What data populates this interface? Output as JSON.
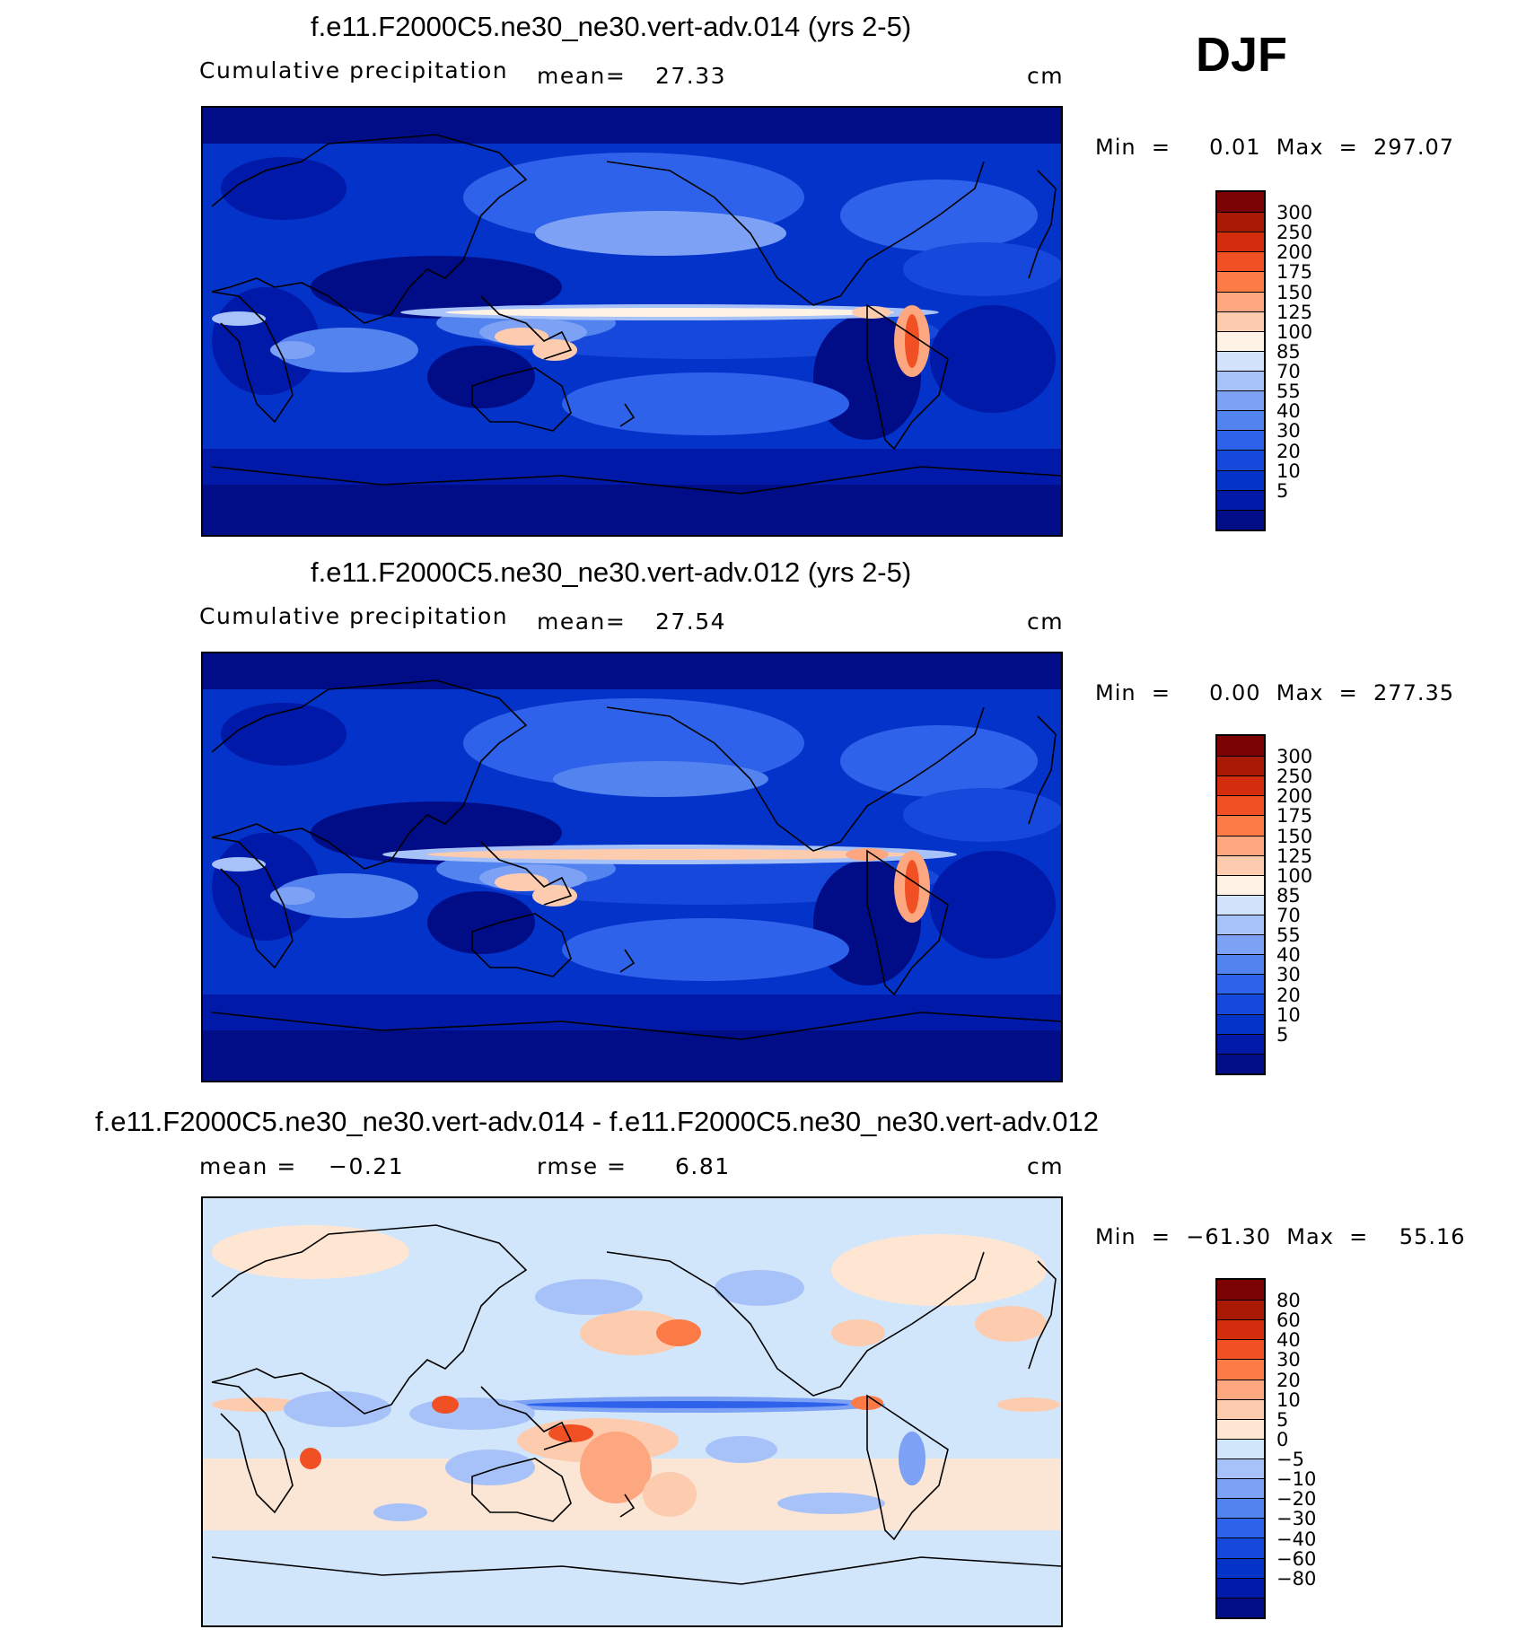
{
  "season_label": "DJF",
  "colors": {
    "precip_scale": [
      "#000d87",
      "#0019a8",
      "#0433c9",
      "#1548db",
      "#2e62ea",
      "#5383ef",
      "#7da1f4",
      "#a6c2f8",
      "#d2e3fb",
      "#fff3e6",
      "#fdcbae",
      "#fca77f",
      "#fb7a46",
      "#f05024",
      "#d32d0e",
      "#a81a06",
      "#7a0202"
    ],
    "diff_scale": [
      "#000d87",
      "#0019a8",
      "#0433c9",
      "#1548db",
      "#2e62ea",
      "#5383ef",
      "#7da1f4",
      "#a6c2f8",
      "#d2e6fb",
      "#ffe6d2",
      "#fdcbae",
      "#fca77f",
      "#fb7a46",
      "#f05024",
      "#d32d0e",
      "#a81a06",
      "#7a0202"
    ],
    "coastline": "#000000"
  },
  "panels": [
    {
      "title": "f.e11.F2000C5.ne30_ne30.vert-adv.014 (yrs 2-5)",
      "left_label": "Cumulative  precipitation",
      "mean_label": "mean=",
      "mean_value": "27.33",
      "units": "cm",
      "min_max": "Min  =     0.01  Max  =  297.07",
      "colorbar_ticks": [
        "300",
        "250",
        "200",
        "175",
        "150",
        "125",
        "100",
        "85",
        "70",
        "55",
        "40",
        "30",
        "20",
        "10",
        "5"
      ]
    },
    {
      "title": "f.e11.F2000C5.ne30_ne30.vert-adv.012 (yrs 2-5)",
      "left_label": "Cumulative  precipitation",
      "mean_label": "mean=",
      "mean_value": "27.54",
      "units": "cm",
      "min_max": "Min  =     0.00  Max  =  277.35",
      "colorbar_ticks": [
        "300",
        "250",
        "200",
        "175",
        "150",
        "125",
        "100",
        "85",
        "70",
        "55",
        "40",
        "30",
        "20",
        "10",
        "5"
      ]
    },
    {
      "title": "f.e11.F2000C5.ne30_ne30.vert-adv.014 - f.e11.F2000C5.ne30_ne30.vert-adv.012",
      "mean_label": "mean  =",
      "mean_value": "−0.21",
      "rmse_label": "rmse  =",
      "rmse_value": "6.81",
      "units": "cm",
      "min_max": "Min  =  −61.30  Max  =    55.16",
      "colorbar_ticks": [
        "80",
        "60",
        "40",
        "30",
        "20",
        "10",
        "5",
        "0",
        "−5",
        "−10",
        "−20",
        "−30",
        "−40",
        "−60",
        "−80"
      ]
    }
  ]
}
